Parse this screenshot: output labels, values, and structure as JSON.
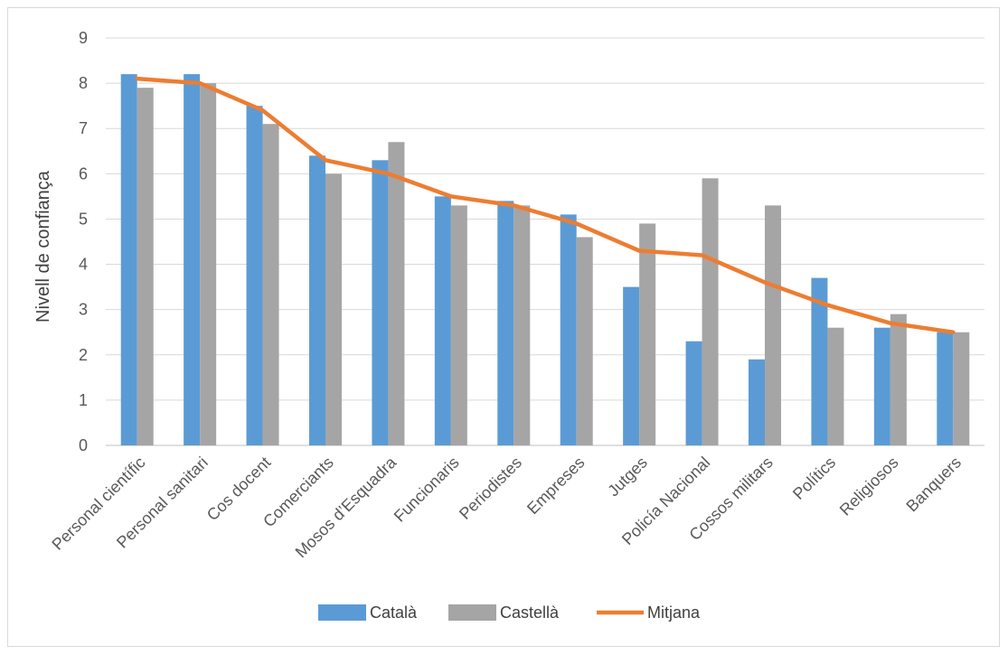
{
  "chart_data": {
    "type": "bar",
    "title": "",
    "xlabel": "",
    "ylabel": "Nivell de confiança",
    "ylim": [
      0,
      9
    ],
    "yticks": [
      "0",
      "1",
      "2",
      "3",
      "4",
      "5",
      "6",
      "7",
      "8",
      "9"
    ],
    "grid": true,
    "legend_position": "bottom",
    "categories": [
      "Personal científic",
      "Personal sanitari",
      "Cos docent",
      "Comerciants",
      "Mosos d’Esquadra",
      "Funcionaris",
      "Periodistes",
      "Empreses",
      "Jutges",
      "Policía Nacional",
      "Cossos militars",
      "Polítics",
      "Religiosos",
      "Banquers"
    ],
    "series": [
      {
        "name": "Català",
        "type": "bar",
        "color": "#5b9bd5",
        "values": [
          8.2,
          8.2,
          7.5,
          6.4,
          6.3,
          5.5,
          5.4,
          5.1,
          3.5,
          2.3,
          1.9,
          3.7,
          2.6,
          2.5
        ]
      },
      {
        "name": "Castellà",
        "type": "bar",
        "color": "#a5a5a5",
        "values": [
          7.9,
          8.0,
          7.1,
          6.0,
          6.7,
          5.3,
          5.3,
          4.6,
          4.9,
          5.9,
          5.3,
          2.6,
          2.9,
          2.5
        ]
      },
      {
        "name": "Mitjana",
        "type": "line",
        "color": "#ed7d31",
        "values": [
          8.1,
          8.0,
          7.4,
          6.3,
          6.0,
          5.5,
          5.3,
          4.9,
          4.3,
          4.2,
          3.6,
          3.1,
          2.7,
          2.5
        ]
      }
    ]
  }
}
